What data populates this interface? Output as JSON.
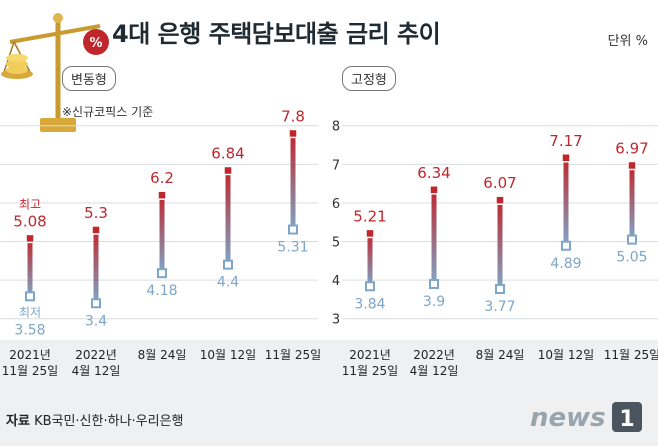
{
  "title": "4대 은행 주택담보대출 금리 추이",
  "unit": "단위 %",
  "note": "※신규코픽스 기준",
  "source_label": "자료",
  "source_text": "KB국민·신한·하나·우리은행",
  "logo_text": "news",
  "logo_number": "1",
  "colors": {
    "high": "#c0272d",
    "low": "#7ea6c8",
    "grid": "#d9dde1",
    "band": "#eef0f2"
  },
  "chart_data": [
    {
      "type": "range-bar",
      "panel_label": "변동형",
      "categories": [
        "2021년 11월 25일",
        "2022년 4월 12일",
        "8월 24일",
        "10월 12일",
        "11월 25일"
      ],
      "category_lines": [
        [
          "2021년",
          "11월 25일"
        ],
        [
          "2022년",
          "4월 12일"
        ],
        [
          "8월 24일"
        ],
        [
          "10월 12일"
        ],
        [
          "11월 25일"
        ]
      ],
      "series": [
        {
          "name": "최고",
          "values": [
            5.08,
            5.3,
            6.2,
            6.84,
            7.8
          ]
        },
        {
          "name": "최저",
          "values": [
            3.58,
            3.4,
            4.18,
            4.4,
            5.31
          ]
        }
      ],
      "ylim": [
        2.5,
        8.2
      ],
      "yticks": [
        3,
        4,
        5,
        6,
        7,
        8
      ]
    },
    {
      "type": "range-bar",
      "panel_label": "고정형",
      "categories": [
        "2021년 11월 25일",
        "2022년 4월 12일",
        "8월 24일",
        "10월 12일",
        "11월 25일"
      ],
      "category_lines": [
        [
          "2021년",
          "11월 25일"
        ],
        [
          "2022년",
          "4월 12일"
        ],
        [
          "8월 24일"
        ],
        [
          "10월 12일"
        ],
        [
          "11월 25일"
        ]
      ],
      "series": [
        {
          "name": "최고",
          "values": [
            5.21,
            6.34,
            6.07,
            7.17,
            6.97
          ]
        },
        {
          "name": "최저",
          "values": [
            3.84,
            3.9,
            3.77,
            4.89,
            5.05
          ]
        }
      ],
      "ylim": [
        2.5,
        8.2
      ]
    }
  ]
}
